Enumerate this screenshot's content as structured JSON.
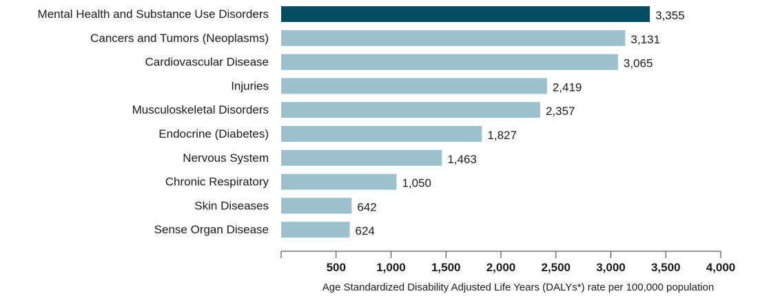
{
  "colors": {
    "highlight": "#034d63",
    "bar": "#9dc2cf",
    "axis": "#333333",
    "text": "#1a1a1a",
    "background": "#ffffff"
  },
  "chart_data": {
    "type": "bar",
    "orientation": "horizontal",
    "categories": [
      "Mental Health and Substance Use Disorders",
      "Cancers and Tumors (Neoplasms)",
      "Cardiovascular Disease",
      "Injuries",
      "Musculoskeletal Disorders",
      "Endocrine (Diabetes)",
      "Nervous System",
      "Chronic Respiratory",
      "Skin Diseases",
      "Sense Organ Disease"
    ],
    "values": [
      3355,
      3131,
      3065,
      2419,
      2357,
      1827,
      1463,
      1050,
      642,
      624
    ],
    "value_labels": [
      "3,355",
      "3,131",
      "3,065",
      "2,419",
      "2,357",
      "1,827",
      "1,463",
      "1,050",
      "642",
      "624"
    ],
    "highlighted_category": "Mental Health and Substance Use Disorders",
    "xlim": [
      0,
      4000
    ],
    "xticks": [
      0,
      500,
      1000,
      1500,
      2000,
      2500,
      3000,
      3500,
      4000
    ],
    "xtick_labels": [
      "",
      "500",
      "1,000",
      "1,500",
      "2,000",
      "2,500",
      "3,000",
      "3,500",
      "4,000"
    ],
    "xlabel": "Age Standardized Disability Adjusted Life Years (DALYs*) rate per 100,000 population",
    "title": "",
    "grid": false,
    "legend": false
  }
}
